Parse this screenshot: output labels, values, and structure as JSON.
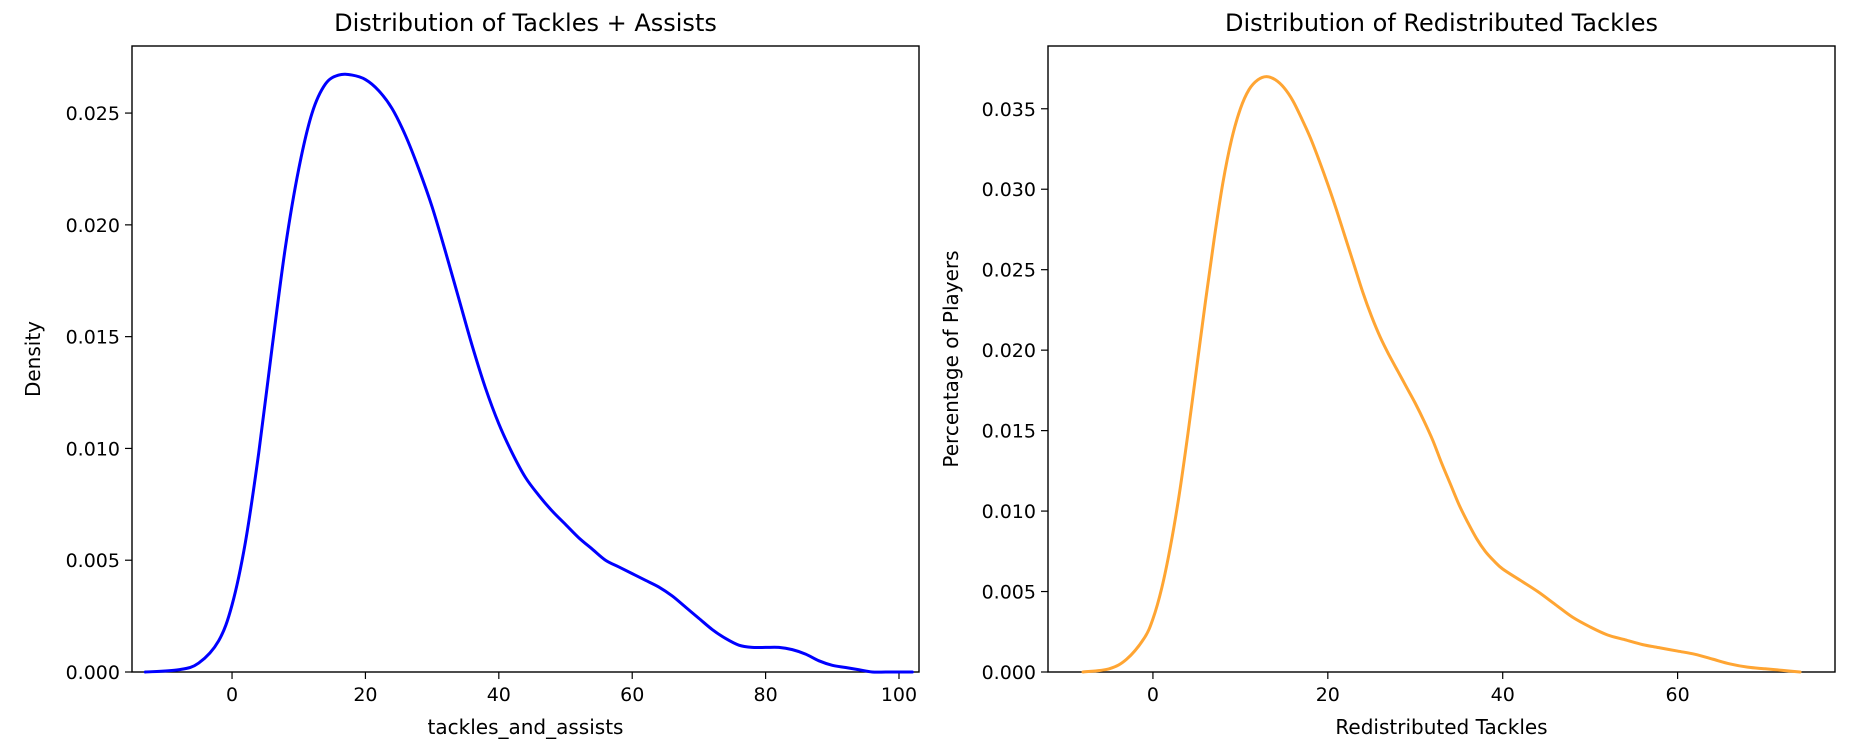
{
  "chart_data": [
    {
      "type": "line",
      "title": "Distribution of Tackles + Assists",
      "xlabel": "tackles_and_assists",
      "ylabel": "Density",
      "xlim": [
        -15,
        103
      ],
      "ylim": [
        0,
        0.028
      ],
      "xticks": [
        0,
        20,
        40,
        60,
        80,
        100
      ],
      "yticks": [
        0.0,
        0.005,
        0.01,
        0.015,
        0.02,
        0.025
      ],
      "ytick_labels": [
        "0.000",
        "0.005",
        "0.010",
        "0.015",
        "0.020",
        "0.025"
      ],
      "grid": false,
      "series": [
        {
          "color": "#0000ff",
          "x": [
            -13,
            -8,
            -5,
            -2,
            0,
            2,
            4,
            6,
            8,
            10,
            12,
            14,
            16,
            18,
            20,
            22,
            24,
            26,
            28,
            30,
            32,
            34,
            36,
            38,
            40,
            42,
            44,
            46,
            48,
            50,
            52,
            54,
            56,
            58,
            60,
            62,
            64,
            66,
            68,
            70,
            72,
            74,
            76,
            78,
            80,
            82,
            84,
            86,
            88,
            90,
            92,
            94,
            96,
            98,
            100,
            102
          ],
          "y": [
            0.0,
            0.0001,
            0.0004,
            0.0014,
            0.003,
            0.0058,
            0.0098,
            0.0145,
            0.019,
            0.0225,
            0.025,
            0.0263,
            0.0267,
            0.0267,
            0.0265,
            0.026,
            0.0252,
            0.024,
            0.0225,
            0.0208,
            0.0188,
            0.0167,
            0.0146,
            0.0127,
            0.0111,
            0.0098,
            0.0087,
            0.0079,
            0.0072,
            0.0066,
            0.006,
            0.0055,
            0.005,
            0.0047,
            0.0044,
            0.0041,
            0.0038,
            0.0034,
            0.0029,
            0.0024,
            0.0019,
            0.0015,
            0.0012,
            0.0011,
            0.0011,
            0.0011,
            0.001,
            0.0008,
            0.0005,
            0.0003,
            0.0002,
            0.0001,
            0.0,
            0.0,
            0.0,
            0.0
          ]
        }
      ]
    },
    {
      "type": "line",
      "title": "Distribution of Redistributed Tackles",
      "xlabel": "Redistributed Tackles",
      "ylabel": "Percentage of Players",
      "xlim": [
        -12,
        78
      ],
      "ylim": [
        0,
        0.0389
      ],
      "xticks": [
        0,
        20,
        40,
        60
      ],
      "yticks": [
        0.0,
        0.005,
        0.01,
        0.015,
        0.02,
        0.025,
        0.03,
        0.035
      ],
      "ytick_labels": [
        "0.000",
        "0.005",
        "0.010",
        "0.015",
        "0.020",
        "0.025",
        "0.030",
        "0.035"
      ],
      "grid": false,
      "series": [
        {
          "color": "#ffa533",
          "x": [
            -8,
            -5,
            -3,
            -1,
            0,
            1,
            2,
            3,
            4,
            5,
            6,
            7,
            8,
            9,
            10,
            11,
            12,
            13,
            14,
            15,
            16,
            17,
            18,
            19,
            20,
            21,
            22,
            23,
            24,
            25,
            26,
            27,
            28,
            29,
            30,
            31,
            32,
            33,
            34,
            35,
            36,
            37,
            38,
            39,
            40,
            42,
            44,
            46,
            48,
            50,
            52,
            54,
            56,
            58,
            60,
            62,
            64,
            66,
            68,
            70,
            72,
            74
          ],
          "y": [
            0.0,
            0.0002,
            0.0008,
            0.0021,
            0.0033,
            0.0052,
            0.0078,
            0.011,
            0.0148,
            0.0189,
            0.023,
            0.0269,
            0.0304,
            0.0331,
            0.035,
            0.0362,
            0.0368,
            0.037,
            0.0368,
            0.0363,
            0.0355,
            0.0344,
            0.0332,
            0.0318,
            0.0303,
            0.0287,
            0.027,
            0.0253,
            0.0236,
            0.0221,
            0.0208,
            0.0197,
            0.0187,
            0.0177,
            0.0167,
            0.0156,
            0.0144,
            0.013,
            0.0117,
            0.0104,
            0.0093,
            0.0083,
            0.0075,
            0.0069,
            0.0064,
            0.0057,
            0.005,
            0.0042,
            0.0034,
            0.0028,
            0.0023,
            0.002,
            0.0017,
            0.0015,
            0.0013,
            0.0011,
            0.0008,
            0.0005,
            0.0003,
            0.0002,
            0.0001,
            0.0
          ]
        }
      ]
    }
  ]
}
